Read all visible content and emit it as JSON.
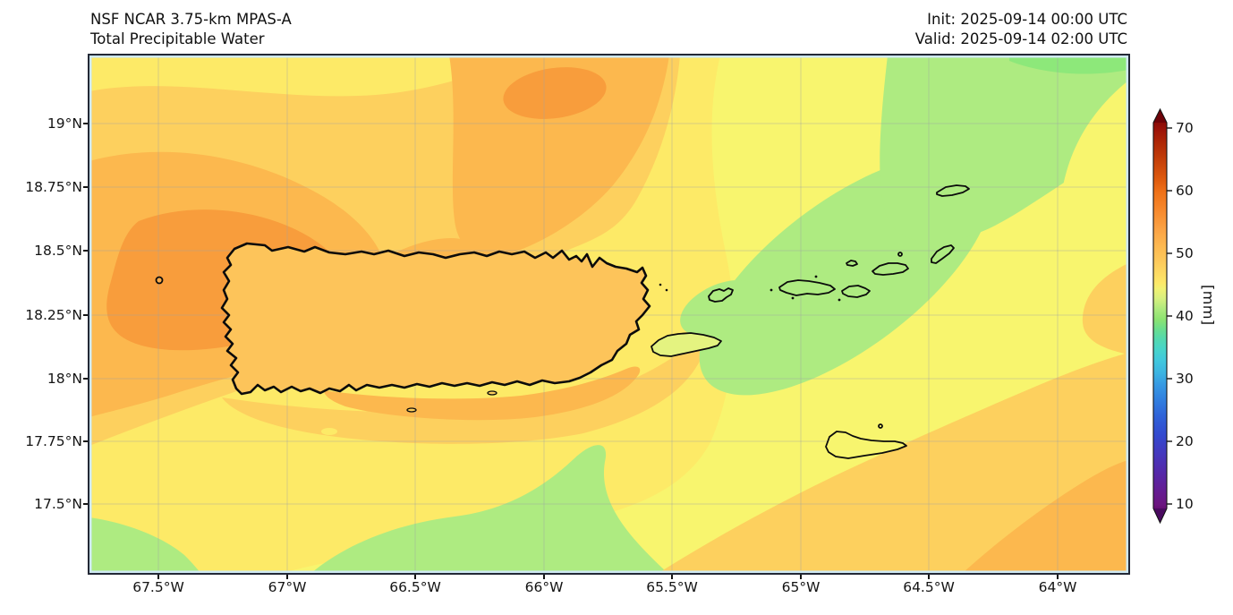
{
  "header": {
    "title_line1": "NSF NCAR 3.75-km MPAS-A",
    "title_line2": "Total Precipitable Water",
    "init_line": "Init: 2025-09-14 00:00 UTC",
    "valid_line": "Valid: 2025-09-14 02:00 UTC"
  },
  "axes": {
    "x": [
      "67.5°W",
      "67°W",
      "66.5°W",
      "66°W",
      "65.5°W",
      "65°W",
      "64.5°W",
      "64°W"
    ],
    "y": [
      "19°N",
      "18.75°N",
      "18.5°N",
      "18.25°N",
      "18°N",
      "17.75°N",
      "17.5°N"
    ]
  },
  "colorbar": {
    "ticks": [
      "70",
      "60",
      "50",
      "40",
      "30",
      "20",
      "10"
    ],
    "unit": "[mm]",
    "extend_high_color": "#6e0308",
    "extend_low_color": "#4a0a60"
  },
  "palette": {
    "ocean_pale_yellow": "#f8f56e",
    "yellow": "#fdea67",
    "yellow_orange": "#fdd05e",
    "orange": "#fcb84e",
    "deep_orange": "#f89d3c",
    "light_green": "#aeeb81",
    "green": "#8de87a",
    "island_green": "#9de584",
    "cyan": "#66dcc6",
    "grid": "#9aa0a6",
    "coastline": "#0b0b0b",
    "frame": "#232936",
    "inner_rim": "#cfe9f3"
  }
}
